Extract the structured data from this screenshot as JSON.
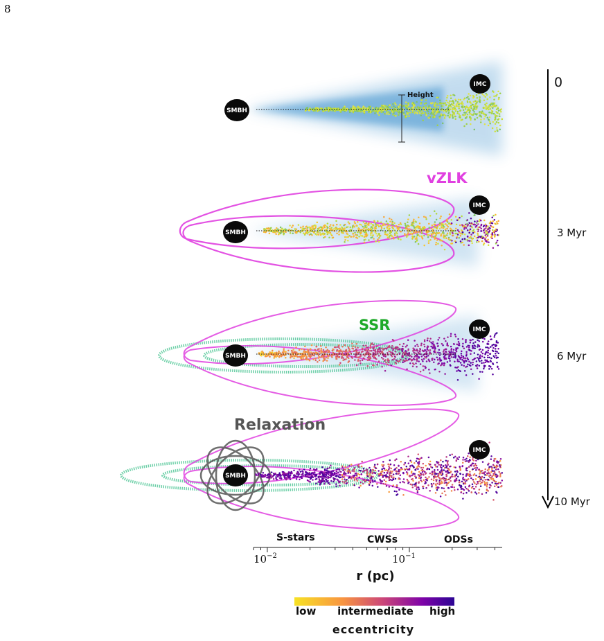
{
  "page_number": "8",
  "labels": {
    "smbh": "SMBH",
    "imc": "IMC",
    "height": "Height"
  },
  "processes": {
    "vzlk": "vZLK",
    "ssr": "SSR",
    "relaxation": "Relaxation"
  },
  "timeline": {
    "t0": "0",
    "t1": "3 Myr",
    "t2": "6 Myr",
    "t3": "10 Myr"
  },
  "populations": {
    "s_stars": "S-stars",
    "cwss": "CWSs",
    "odss": "ODSs"
  },
  "axis": {
    "x_tick_1": "10",
    "x_tick_1_exp": "−2",
    "x_tick_2": "10",
    "x_tick_2_exp": "−1",
    "x_title": "r (pc)",
    "scale": "log"
  },
  "colorbar": {
    "low": "low",
    "mid": "intermediate",
    "high": "high",
    "title": "eccentricity",
    "colors": [
      "#f7e225",
      "#f89540",
      "#cc4778",
      "#7e03a8",
      "#2c0594"
    ]
  },
  "colors": {
    "vzlk": "#e040e0",
    "ssr": "#1faa2a",
    "relaxation": "#555555",
    "disk": "#2a86c8"
  }
}
